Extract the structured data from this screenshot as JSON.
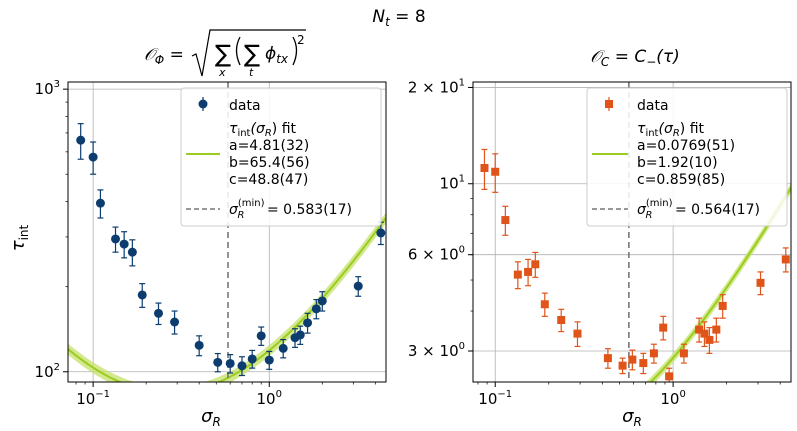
{
  "figure": {
    "suptitle_lhs": "N",
    "suptitle_sub": "t",
    "suptitle_rhs": " = 8"
  },
  "chart_data": [
    {
      "type": "scatter",
      "panel": "left",
      "title": {
        "lhs": "𝒪",
        "lhs_sub": "Φ",
        "eq": " = ",
        "sum": "∑",
        "sum_x": "x",
        "sum_t": "t",
        "phi": "ϕ",
        "phi_sub": "tx",
        "pow": "2"
      },
      "xlabel": {
        "main": "σ",
        "sub": "R"
      },
      "ylabel": {
        "main": "τ",
        "sub": "int"
      },
      "xscale": "log",
      "yscale": "log",
      "xlim": [
        0.072,
        4.6
      ],
      "ylim": [
        92,
        1060
      ],
      "grid": true,
      "x_ticks": [
        {
          "value": 0.1,
          "base": "10",
          "exp": "−1"
        },
        {
          "value": 1,
          "base": "10",
          "exp": "0"
        }
      ],
      "y_ticks": [
        {
          "value": 100,
          "base": "10",
          "exp": "2"
        },
        {
          "value": 1000,
          "base": "10",
          "exp": "3"
        }
      ],
      "series": [
        {
          "name": "data",
          "kind": "points",
          "marker": "circle",
          "color": "#0c3d6e",
          "points": [
            {
              "x": 0.085,
              "y": 660,
              "err": 95
            },
            {
              "x": 0.1,
              "y": 575,
              "err": 75
            },
            {
              "x": 0.11,
              "y": 395,
              "err": 45
            },
            {
              "x": 0.134,
              "y": 295,
              "err": 30
            },
            {
              "x": 0.15,
              "y": 283,
              "err": 30
            },
            {
              "x": 0.167,
              "y": 265,
              "err": 28
            },
            {
              "x": 0.19,
              "y": 187,
              "err": 18
            },
            {
              "x": 0.235,
              "y": 161,
              "err": 14
            },
            {
              "x": 0.29,
              "y": 150,
              "err": 14
            },
            {
              "x": 0.4,
              "y": 124,
              "err": 10
            },
            {
              "x": 0.51,
              "y": 108,
              "err": 8
            },
            {
              "x": 0.6,
              "y": 107,
              "err": 8
            },
            {
              "x": 0.7,
              "y": 105,
              "err": 8
            },
            {
              "x": 0.8,
              "y": 111,
              "err": 8
            },
            {
              "x": 0.9,
              "y": 134,
              "err": 10
            },
            {
              "x": 1.0,
              "y": 110,
              "err": 8
            },
            {
              "x": 1.2,
              "y": 121,
              "err": 9
            },
            {
              "x": 1.4,
              "y": 132,
              "err": 10
            },
            {
              "x": 1.5,
              "y": 135,
              "err": 10
            },
            {
              "x": 1.65,
              "y": 149,
              "err": 12
            },
            {
              "x": 1.85,
              "y": 167,
              "err": 13
            },
            {
              "x": 2.0,
              "y": 178,
              "err": 14
            },
            {
              "x": 3.2,
              "y": 201,
              "err": 16
            },
            {
              "x": 4.3,
              "y": 310,
              "err": 28
            }
          ]
        },
        {
          "name": "τ_int(σ_R) fit",
          "kind": "fit",
          "color": "#9acd1e",
          "band_color": "#c6e26a",
          "a": 4.81,
          "b": 65.4,
          "c": 48.8,
          "band_rel": 0.045
        }
      ],
      "vline": {
        "x": 0.583,
        "color": "#777777"
      },
      "legend": {
        "position": "top-right",
        "data_label": "data",
        "fit_label_main": "τ",
        "fit_label_sub": "int",
        "fit_label_mid": "(σ",
        "fit_label_sub2": "R",
        "fit_label_end": ") fit",
        "param_a": "a=4.81(32)",
        "param_b": "b=65.4(56)",
        "param_c": "c=48.8(47)",
        "vline_main": "σ",
        "vline_sub": "R",
        "vline_sup": "(min)",
        "vline_value": " = 0.583(17)"
      }
    },
    {
      "type": "scatter",
      "panel": "right",
      "title": {
        "lhs": "𝒪",
        "lhs_sub": "C",
        "eq": " = C",
        "minus": "−",
        "arg": "(τ)"
      },
      "xlabel": {
        "main": "σ",
        "sub": "R"
      },
      "xscale": "log",
      "yscale": "log",
      "xlim": [
        0.075,
        4.6
      ],
      "ylim": [
        2.4,
        20.8
      ],
      "grid": true,
      "x_ticks": [
        {
          "value": 0.1,
          "base": "10",
          "exp": "−1"
        },
        {
          "value": 1,
          "base": "10",
          "exp": "0"
        }
      ],
      "y_ticks": [
        {
          "value": 3,
          "label": "3 × 10",
          "exp": "0"
        },
        {
          "value": 6,
          "label": "6 × 10",
          "exp": "0"
        },
        {
          "value": 10,
          "label": "10",
          "exp": "1"
        },
        {
          "value": 20,
          "label": "2 × 10",
          "exp": "1"
        }
      ],
      "series": [
        {
          "name": "data",
          "kind": "points",
          "marker": "square",
          "color": "#e0541a",
          "points": [
            {
              "x": 0.087,
              "y": 11.2,
              "err": 1.6
            },
            {
              "x": 0.1,
              "y": 10.9,
              "err": 1.5
            },
            {
              "x": 0.114,
              "y": 7.7,
              "err": 0.8
            },
            {
              "x": 0.134,
              "y": 5.2,
              "err": 0.5
            },
            {
              "x": 0.153,
              "y": 5.3,
              "err": 0.5
            },
            {
              "x": 0.168,
              "y": 5.6,
              "err": 0.5
            },
            {
              "x": 0.19,
              "y": 4.2,
              "err": 0.35
            },
            {
              "x": 0.235,
              "y": 3.75,
              "err": 0.3
            },
            {
              "x": 0.29,
              "y": 3.4,
              "err": 0.3
            },
            {
              "x": 0.43,
              "y": 2.85,
              "err": 0.2
            },
            {
              "x": 0.52,
              "y": 2.7,
              "err": 0.15
            },
            {
              "x": 0.59,
              "y": 2.82,
              "err": 0.2
            },
            {
              "x": 0.68,
              "y": 2.75,
              "err": 0.2
            },
            {
              "x": 0.78,
              "y": 2.95,
              "err": 0.2
            },
            {
              "x": 0.88,
              "y": 3.55,
              "err": 0.3
            },
            {
              "x": 0.95,
              "y": 2.5,
              "err": 0.15
            },
            {
              "x": 1.15,
              "y": 2.95,
              "err": 0.2
            },
            {
              "x": 1.4,
              "y": 3.5,
              "err": 0.3
            },
            {
              "x": 1.5,
              "y": 3.4,
              "err": 0.3
            },
            {
              "x": 1.6,
              "y": 3.25,
              "err": 0.3
            },
            {
              "x": 1.75,
              "y": 3.5,
              "err": 0.3
            },
            {
              "x": 1.9,
              "y": 4.15,
              "err": 0.35
            },
            {
              "x": 3.1,
              "y": 4.9,
              "err": 0.4
            },
            {
              "x": 4.3,
              "y": 5.8,
              "err": 0.5
            }
          ]
        },
        {
          "name": "τ_int(σ_R) fit",
          "kind": "fit",
          "color": "#9acd1e",
          "band_color": "#c6e26a",
          "a": 0.0769,
          "b": 1.92,
          "c": 0.859,
          "band_rel": 0.035
        }
      ],
      "vline": {
        "x": 0.564,
        "color": "#777777"
      },
      "legend": {
        "position": "top-right",
        "data_label": "data",
        "fit_label_main": "τ",
        "fit_label_sub": "int",
        "fit_label_mid": "(σ",
        "fit_label_sub2": "R",
        "fit_label_end": ") fit",
        "param_a": "a=0.0769(51)",
        "param_b": "b=1.92(10)",
        "param_c": "c=0.859(85)",
        "vline_main": "σ",
        "vline_sub": "R",
        "vline_sup": "(min)",
        "vline_value": " = 0.564(17)"
      }
    }
  ]
}
